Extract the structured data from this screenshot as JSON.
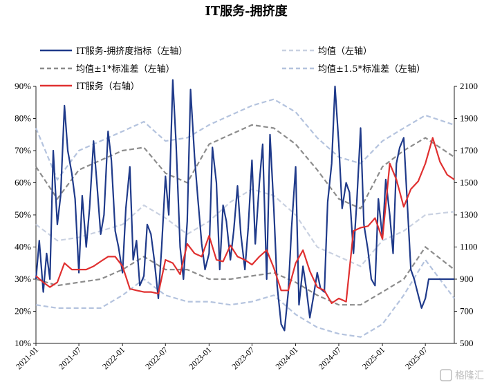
{
  "chart_data": {
    "type": "line",
    "title": "IT服务-拥挤度",
    "left_axis": {
      "ylim": [
        10,
        90
      ],
      "ticks": [
        "10%",
        "20%",
        "30%",
        "40%",
        "50%",
        "60%",
        "70%",
        "80%",
        "90%"
      ]
    },
    "right_axis": {
      "ylim": [
        500,
        2100
      ],
      "ticks": [
        "500",
        "700",
        "900",
        "1100",
        "1300",
        "1500",
        "1700",
        "1900",
        "2100"
      ]
    },
    "x_ticks": [
      "2021-01",
      "2021-07",
      "2022-01",
      "2022-07",
      "2023-01",
      "2023-07",
      "2024-01",
      "2024-07",
      "2025-01",
      "2025-07"
    ],
    "x_range": [
      "2021-01-01",
      "2025-10-31"
    ],
    "grid": false,
    "legend_position": "top",
    "series": [
      {
        "name": "IT服务-拥挤度指标（左轴）",
        "axis": "left",
        "color": "#1f3a8a",
        "style": "solid",
        "x": [
          "2021-01-01",
          "2021-01-15",
          "2021-02-01",
          "2021-02-15",
          "2021-03-01",
          "2021-03-15",
          "2021-04-01",
          "2021-04-15",
          "2021-05-01",
          "2021-05-15",
          "2021-06-01",
          "2021-06-15",
          "2021-07-01",
          "2021-07-15",
          "2021-08-01",
          "2021-08-15",
          "2021-09-01",
          "2021-09-15",
          "2021-10-01",
          "2021-10-15",
          "2021-11-01",
          "2021-11-15",
          "2021-12-01",
          "2021-12-15",
          "2022-01-01",
          "2022-01-15",
          "2022-02-01",
          "2022-02-15",
          "2022-03-01",
          "2022-03-15",
          "2022-04-01",
          "2022-04-15",
          "2022-05-01",
          "2022-05-15",
          "2022-06-01",
          "2022-06-15",
          "2022-07-01",
          "2022-07-15",
          "2022-08-01",
          "2022-08-15",
          "2022-09-01",
          "2022-09-15",
          "2022-10-01",
          "2022-10-15",
          "2022-11-01",
          "2022-11-15",
          "2022-12-01",
          "2022-12-15",
          "2023-01-01",
          "2023-01-15",
          "2023-02-01",
          "2023-02-15",
          "2023-03-01",
          "2023-03-15",
          "2023-04-01",
          "2023-04-15",
          "2023-05-01",
          "2023-05-15",
          "2023-06-01",
          "2023-06-15",
          "2023-07-01",
          "2023-07-15",
          "2023-08-01",
          "2023-08-15",
          "2023-09-01",
          "2023-09-15",
          "2023-10-01",
          "2023-10-15",
          "2023-11-01",
          "2023-11-15",
          "2023-12-01",
          "2023-12-15",
          "2024-01-01",
          "2024-01-15",
          "2024-02-01",
          "2024-02-15",
          "2024-03-01",
          "2024-03-15",
          "2024-04-01",
          "2024-04-15",
          "2024-05-01",
          "2024-05-15",
          "2024-06-01",
          "2024-06-15",
          "2024-07-01",
          "2024-07-15",
          "2024-08-01",
          "2024-08-15",
          "2024-09-01",
          "2024-09-15",
          "2024-10-01",
          "2024-10-15",
          "2024-11-01",
          "2024-11-15",
          "2024-12-01",
          "2024-12-15",
          "2025-01-01",
          "2025-01-15",
          "2025-02-01",
          "2025-02-15",
          "2025-03-01",
          "2025-03-15",
          "2025-04-01",
          "2025-04-15",
          "2025-05-01",
          "2025-05-15",
          "2025-06-01",
          "2025-06-15",
          "2025-07-01",
          "2025-07-15",
          "2025-08-01",
          "2025-08-15",
          "2025-09-01",
          "2025-09-15",
          "2025-10-01",
          "2025-10-15",
          "2025-10-31"
        ],
        "values": [
          30,
          42,
          26,
          38,
          30,
          70,
          47,
          56,
          84,
          70,
          63,
          55,
          32,
          56,
          40,
          52,
          73,
          60,
          44,
          50,
          76,
          67,
          45,
          40,
          32,
          52,
          65,
          36,
          42,
          28,
          31,
          47,
          44,
          36,
          24,
          40,
          62,
          50,
          92,
          72,
          40,
          30,
          48,
          89,
          68,
          55,
          41,
          33,
          38,
          71,
          60,
          33,
          53,
          48,
          36,
          45,
          59,
          44,
          33,
          46,
          67,
          41,
          60,
          72,
          30,
          75,
          52,
          28,
          16,
          14,
          26,
          46,
          65,
          22,
          34,
          27,
          18,
          24,
          32,
          27,
          26,
          54,
          66,
          90,
          72,
          52,
          60,
          57,
          38,
          54,
          77,
          47,
          39,
          30,
          28,
          55,
          43,
          61,
          50,
          38,
          66,
          71,
          74,
          55,
          33,
          30,
          25,
          21,
          24,
          30,
          30,
          30,
          30,
          30,
          30,
          30,
          30
        ],
        "values_note": ""
      },
      {
        "name": "均值（左轴）",
        "axis": "left",
        "color": "#c9d1e1",
        "style": "dashed",
        "x": [
          "2021-01-01",
          "2021-04-01",
          "2021-07-01",
          "2021-10-01",
          "2022-01-01",
          "2022-04-01",
          "2022-07-01",
          "2022-10-01",
          "2023-01-01",
          "2023-04-01",
          "2023-07-01",
          "2023-10-01",
          "2024-01-01",
          "2024-04-01",
          "2024-07-01",
          "2024-10-01",
          "2025-01-01",
          "2025-04-01",
          "2025-07-01",
          "2025-10-31"
        ],
        "values": [
          47,
          42,
          43,
          45,
          47,
          53,
          49,
          44,
          48,
          54,
          58,
          56,
          50,
          40,
          37,
          34,
          42,
          45,
          50,
          51
        ]
      },
      {
        "name": "均值±1*标准差（左轴）",
        "axis": "left",
        "color": "#8c8c8c",
        "style": "dashed",
        "x": [
          "2021-01-01",
          "2021-04-01",
          "2021-07-01",
          "2021-10-01",
          "2022-01-01",
          "2022-04-01",
          "2022-07-01",
          "2022-10-01",
          "2023-01-01",
          "2023-04-01",
          "2023-07-01",
          "2023-10-01",
          "2024-01-01",
          "2024-04-01",
          "2024-07-01",
          "2024-10-01",
          "2025-01-01",
          "2025-04-01",
          "2025-07-01",
          "2025-10-31"
        ],
        "upper": [
          65,
          55,
          64,
          67,
          70,
          71,
          63,
          60,
          72,
          75,
          78,
          77,
          72,
          64,
          55,
          52,
          65,
          70,
          74,
          68
        ],
        "lower": [
          30,
          28,
          29,
          30,
          33,
          37,
          33,
          33,
          30,
          30,
          31,
          32,
          29,
          25,
          22,
          22,
          26,
          30,
          40,
          33
        ]
      },
      {
        "name": "均值±1.5*标准差（左轴）",
        "axis": "left",
        "color": "#b4c3de",
        "style": "dashed",
        "x": [
          "2021-01-01",
          "2021-04-01",
          "2021-07-01",
          "2021-10-01",
          "2022-01-01",
          "2022-04-01",
          "2022-07-01",
          "2022-10-01",
          "2023-01-01",
          "2023-04-01",
          "2023-07-01",
          "2023-10-01",
          "2024-01-01",
          "2024-04-01",
          "2024-07-01",
          "2024-10-01",
          "2025-01-01",
          "2025-04-01",
          "2025-07-01",
          "2025-10-31"
        ],
        "upper": [
          77,
          61,
          70,
          73,
          76,
          79,
          73,
          74,
          78,
          81,
          84,
          86,
          82,
          74,
          68,
          66,
          73,
          77,
          81,
          78
        ],
        "lower": [
          22,
          21,
          21,
          21,
          25,
          30,
          25,
          23,
          23,
          22,
          23,
          25,
          19,
          15,
          13,
          12,
          16,
          25,
          36,
          24
        ]
      },
      {
        "name": "IT服务（右轴）",
        "axis": "right",
        "color": "#e03030",
        "style": "solid",
        "x": [
          "2021-01-01",
          "2021-02-01",
          "2021-03-01",
          "2021-04-01",
          "2021-05-01",
          "2021-06-01",
          "2021-07-01",
          "2021-08-01",
          "2021-09-01",
          "2021-10-01",
          "2021-11-01",
          "2021-12-01",
          "2022-01-01",
          "2022-02-01",
          "2022-03-01",
          "2022-04-01",
          "2022-05-01",
          "2022-06-01",
          "2022-07-01",
          "2022-08-01",
          "2022-09-01",
          "2022-10-01",
          "2022-11-01",
          "2022-12-01",
          "2023-01-01",
          "2023-02-01",
          "2023-03-01",
          "2023-04-01",
          "2023-05-01",
          "2023-06-01",
          "2023-07-01",
          "2023-08-01",
          "2023-09-01",
          "2023-10-01",
          "2023-11-01",
          "2023-12-01",
          "2024-01-01",
          "2024-02-01",
          "2024-03-01",
          "2024-04-01",
          "2024-05-01",
          "2024-06-01",
          "2024-07-01",
          "2024-08-01",
          "2024-09-01",
          "2024-10-01",
          "2024-11-01",
          "2024-12-01",
          "2025-01-01",
          "2025-02-01",
          "2025-03-01",
          "2025-04-01",
          "2025-05-01",
          "2025-06-01",
          "2025-07-01",
          "2025-08-01",
          "2025-09-01",
          "2025-10-01",
          "2025-10-31"
        ],
        "values": [
          920,
          880,
          850,
          880,
          1000,
          960,
          960,
          960,
          980,
          1010,
          1040,
          1040,
          980,
          840,
          830,
          820,
          820,
          810,
          1020,
          1000,
          930,
          1120,
          1060,
          1040,
          1170,
          1020,
          1010,
          1110,
          1040,
          1020,
          990,
          1040,
          1080,
          970,
          830,
          830,
          1000,
          1080,
          950,
          850,
          830,
          750,
          780,
          760,
          1200,
          1220,
          1230,
          1280,
          1150,
          1620,
          1520,
          1350,
          1460,
          1510,
          1620,
          1780,
          1630,
          1550,
          1520
        ]
      }
    ]
  },
  "watermark": "格隆汇"
}
